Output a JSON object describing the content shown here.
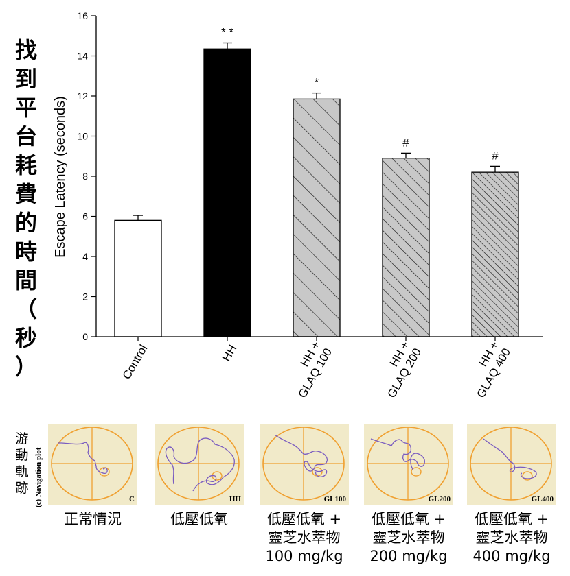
{
  "chart_data": {
    "type": "bar",
    "categories": [
      {
        "line1": "Control",
        "line2": ""
      },
      {
        "line1": "HH",
        "line2": ""
      },
      {
        "line1": "HH +",
        "line2": "GLAQ 100"
      },
      {
        "line1": "HH +",
        "line2": "GLAQ 200"
      },
      {
        "line1": "HH +",
        "line2": "GLAQ 400"
      }
    ],
    "values": [
      5.8,
      14.35,
      11.85,
      8.9,
      8.2
    ],
    "errors": [
      0.25,
      0.3,
      0.3,
      0.25,
      0.3
    ],
    "significance": [
      "",
      "* *",
      "*",
      "#",
      "#"
    ],
    "ylabel": "Escape Latency (seconds)",
    "ylim": [
      0,
      16
    ],
    "yticks": [
      0,
      2,
      4,
      6,
      8,
      10,
      12,
      14,
      16
    ],
    "bar_styles": [
      "white",
      "black",
      "gray-hatch-wide",
      "gray-hatch-medium",
      "gray-hatch-dense"
    ]
  },
  "side_title": {
    "chars": [
      "找",
      "到",
      "平",
      "台",
      "耗",
      "費",
      "的",
      "時",
      "間",
      "（",
      "秒",
      "）"
    ]
  },
  "navigation": {
    "side_chars": [
      "游",
      "動",
      "軌",
      "跡"
    ],
    "caption": "(c) Navigation plot",
    "panel_tags": [
      "C",
      "HH",
      "GL100",
      "GL200",
      "GL400"
    ],
    "colors": {
      "background": "#f1eac9",
      "pool": "#f0a030",
      "path": "#7a5cc0"
    }
  },
  "group_labels": [
    {
      "line1": "正常情況",
      "line2": "",
      "line3": ""
    },
    {
      "line1": "低壓低氧",
      "line2": "",
      "line3": ""
    },
    {
      "line1": "低壓低氧 +",
      "line2": "靈芝水萃物",
      "line3": "100 mg/kg"
    },
    {
      "line1": "低壓低氧 +",
      "line2": "靈芝水萃物",
      "line3": "200 mg/kg"
    },
    {
      "line1": "低壓低氧 +",
      "line2": "靈芝水萃物",
      "line3": "400 mg/kg"
    }
  ]
}
